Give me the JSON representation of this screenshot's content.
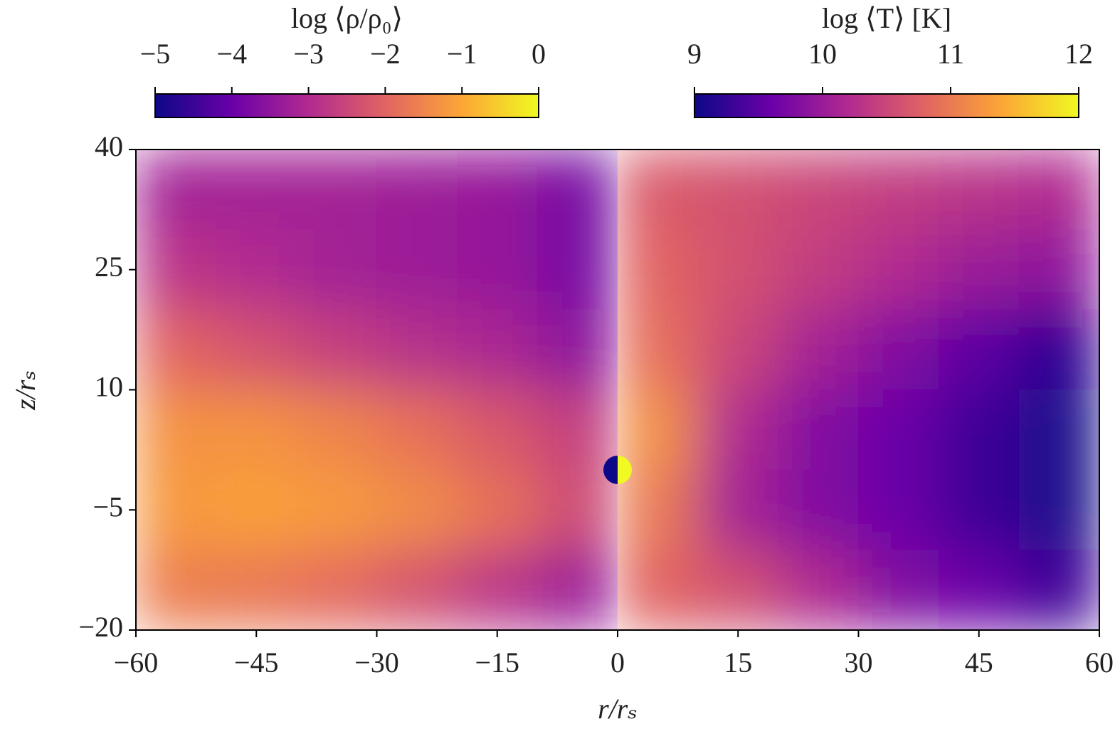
{
  "chart_data": {
    "type": "heatmap",
    "xlabel": "r/rₛ",
    "ylabel": "z/rₛ",
    "xlim": [
      -60,
      60
    ],
    "ylim": [
      -20,
      40
    ],
    "xticks": [
      {
        "value": -60,
        "label": "−60"
      },
      {
        "value": -45,
        "label": "−45"
      },
      {
        "value": -30,
        "label": "−30"
      },
      {
        "value": -15,
        "label": "−15"
      },
      0,
      15,
      30,
      45,
      60
    ],
    "yticks": [
      {
        "value": -20,
        "label": "−20"
      },
      {
        "value": -5,
        "label": "−5"
      },
      10,
      25,
      40
    ],
    "colormap": [
      "#0d0887",
      "#6a00a8",
      "#b12a90",
      "#e16462",
      "#fca636",
      "#f0f921"
    ],
    "panels": [
      {
        "colorbar_label": "log ⟨ρ/ρ₀⟩",
        "clim": [
          -5,
          0
        ],
        "cticks": [
          {
            "value": -5,
            "label": "−5"
          },
          {
            "value": -4,
            "label": "−4"
          },
          {
            "value": -3,
            "label": "−3"
          },
          {
            "value": -2,
            "label": "−2"
          },
          {
            "value": -1,
            "label": "−1"
          },
          0
        ],
        "x": [
          -55,
          -45,
          -35,
          -25,
          -15,
          -5
        ],
        "z": [
          35,
          25,
          15,
          5,
          -5,
          -15
        ],
        "values": [
          [
            -3.2,
            -3.2,
            -3.2,
            -3.3,
            -3.4,
            -3.8
          ],
          [
            -2.8,
            -3.0,
            -3.2,
            -3.3,
            -3.4,
            -3.8
          ],
          [
            -2.0,
            -2.3,
            -2.6,
            -2.9,
            -3.1,
            -3.5
          ],
          [
            -1.3,
            -1.3,
            -1.5,
            -1.8,
            -2.2,
            -2.6
          ],
          [
            -1.2,
            -1.1,
            -1.2,
            -1.4,
            -1.8,
            -2.4
          ],
          [
            -1.6,
            -1.7,
            -1.9,
            -2.3,
            -2.8,
            -3.3
          ]
        ]
      },
      {
        "colorbar_label": "log ⟨T⟩ [K]",
        "clim": [
          9,
          12
        ],
        "cticks": [
          9,
          10,
          11,
          12
        ],
        "x": [
          5,
          15,
          25,
          35,
          45,
          55
        ],
        "z": [
          35,
          25,
          15,
          5,
          -5,
          -15
        ],
        "values": [
          [
            10.7,
            10.6,
            10.5,
            10.4,
            10.3,
            10.2
          ],
          [
            10.8,
            10.6,
            10.4,
            10.2,
            10.0,
            9.9
          ],
          [
            10.9,
            10.5,
            10.1,
            9.8,
            9.5,
            9.2
          ],
          [
            11.2,
            10.2,
            9.8,
            9.6,
            9.3,
            9.1
          ],
          [
            11.0,
            10.1,
            9.8,
            9.6,
            9.3,
            9.1
          ],
          [
            10.8,
            10.6,
            10.2,
            9.8,
            9.6,
            9.3
          ]
        ]
      }
    ]
  }
}
